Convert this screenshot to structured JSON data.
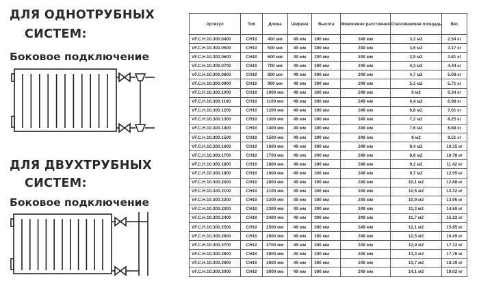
{
  "left": {
    "one_pipe": {
      "title_line1": "ДЛЯ ОДНОТРУБНЫХ",
      "title_line2": "СИСТЕМ:",
      "connection": "Боковое подключение"
    },
    "two_pipe": {
      "title_line1": "ДЛЯ ДВУХТРУБНЫХ",
      "title_line2": "СИСТЕМ:",
      "connection": "Боковое подключение"
    }
  },
  "table": {
    "headers": [
      "Артикул",
      "Тип",
      "Длина",
      "Ширина",
      "Высота",
      "Межосевое расстояние",
      "Отапливаемая площадь",
      "Вес"
    ],
    "rows": [
      [
        "VF.C.H.10.300.0400",
        "CH10",
        "400 мм",
        "49 мм",
        "300 мм",
        "249 мм",
        "3,2 м2",
        "2.54 кг"
      ],
      [
        "VF.C.H.10.300.0500",
        "CH10",
        "500 мм",
        "49 мм",
        "300 мм",
        "249 мм",
        "3,6 м2",
        "3.17 кг"
      ],
      [
        "VF.C.H.10.300.0600",
        "CH10",
        "600 мм",
        "49 мм",
        "300 мм",
        "249 мм",
        "3,9 м2",
        "3.81 кг"
      ],
      [
        "VF.C.H.10.300.0700",
        "CH10",
        "700 мм",
        "49 мм",
        "300 мм",
        "249 мм",
        "4,3 м2",
        "4.44 кг"
      ],
      [
        "VF.C.H.10.300.0800",
        "CH10",
        "800 мм",
        "49 мм",
        "300 мм",
        "249 мм",
        "4,7 м2",
        "5.08 кг"
      ],
      [
        "VF.C.H.10.300.0900",
        "CH10",
        "900 мм",
        "49 мм",
        "300 мм",
        "249 мм",
        "5,1 м2",
        "5.71 кг"
      ],
      [
        "VF.C.H.10.300.1000",
        "CH10",
        "1000 мм",
        "49 мм",
        "300 мм",
        "249 мм",
        "6 м2",
        "6.34 кг"
      ],
      [
        "VF.C.H.10.300.1100",
        "CH10",
        "1100 мм",
        "49 мм",
        "300 мм",
        "249 мм",
        "6,4 м2",
        "6.98 кг"
      ],
      [
        "VF.C.H.10.300.1200",
        "CH10",
        "1200 мм",
        "49 мм",
        "300 мм",
        "249 мм",
        "6,8 м2",
        "7.61 кг"
      ],
      [
        "VF.C.H.10.300.1300",
        "CH10",
        "1300 мм",
        "49 мм",
        "300 мм",
        "249 мм",
        "7,2 м2",
        "8.25 кг"
      ],
      [
        "VF.C.H.10.300.1400",
        "CH10",
        "1400 мм",
        "49 мм",
        "300 мм",
        "249 мм",
        "7,6 м2",
        "8.88 кг"
      ],
      [
        "VF.C.H.10.300.1500",
        "CH10",
        "1500 мм",
        "49 мм",
        "300 мм",
        "249 мм",
        "8 м2",
        "9.51 кг"
      ],
      [
        "VF.C.H.10.300.1600",
        "CH10",
        "1600 мм",
        "49 мм",
        "300 мм",
        "249 мм",
        "8,4 м2",
        "10.15 кг"
      ],
      [
        "VF.C.H.10.300.1700",
        "CH10",
        "1700 мм",
        "49 мм",
        "300 мм",
        "249 мм",
        "8,8 м2",
        "10.78 кг"
      ],
      [
        "VF.C.H.10.300.1800",
        "CH10",
        "1800 мм",
        "49 мм",
        "300 мм",
        "249 мм",
        "9,2 м2",
        "11.42 кг"
      ],
      [
        "VF.C.H.10.300.1900",
        "CH10",
        "1900 мм",
        "49 мм",
        "300 мм",
        "249 мм",
        "9,7 м2",
        "12.05 кг"
      ],
      [
        "VF.C.H.10.300.2000",
        "CH10",
        "2000 мм",
        "49 мм",
        "300 мм",
        "249 мм",
        "10,1 м2",
        "12.68 кг"
      ],
      [
        "VF.C.H.10.300.2100",
        "CH10",
        "2100 мм",
        "49 мм",
        "300 мм",
        "249 мм",
        "10,5 м2",
        "13.32 кг"
      ],
      [
        "VF.C.H.10.300.2200",
        "CH10",
        "2200 мм",
        "49 мм",
        "300 мм",
        "249 мм",
        "10,9 м2",
        "13.95 кг"
      ],
      [
        "VF.C.H.10.300.2300",
        "CH10",
        "2300 мм",
        "49 мм",
        "300 мм",
        "249 мм",
        "11,3 м2",
        "14.59 кг"
      ],
      [
        "VF.C.H.10.300.2400",
        "CH10",
        "2400 мм",
        "49 мм",
        "300 мм",
        "249 мм",
        "11,7 м2",
        "15.22 кг"
      ],
      [
        "VF.C.H.10.300.2500",
        "CH10",
        "2500 мм",
        "49 мм",
        "300 мм",
        "249 мм",
        "12,1 м2",
        "15.85 кг"
      ],
      [
        "VF.C.H.10.300.2600",
        "CH10",
        "2600 мм",
        "49 мм",
        "300 мм",
        "249 мм",
        "12,5 м2",
        "16.49 кг"
      ],
      [
        "VF.C.H.10.300.2700",
        "CH10",
        "2700 мм",
        "49 мм",
        "300 мм",
        "249 мм",
        "12,9 м2",
        "17.12 кг"
      ],
      [
        "VF.C.H.10.300.2800",
        "CH10",
        "2800 мм",
        "49 мм",
        "300 мм",
        "249 мм",
        "13,3 м2",
        "17.76 кг"
      ],
      [
        "VF.C.H.10.300.2900",
        "CH10",
        "2900 мм",
        "49 мм",
        "300 мм",
        "249 мм",
        "13,7 м2",
        "18.39 кг"
      ],
      [
        "VF.C.H.10.300.3000",
        "CH10",
        "3000 мм",
        "49 мм",
        "300 мм",
        "249 мм",
        "14,1 м2",
        "19.02 кг"
      ]
    ]
  }
}
